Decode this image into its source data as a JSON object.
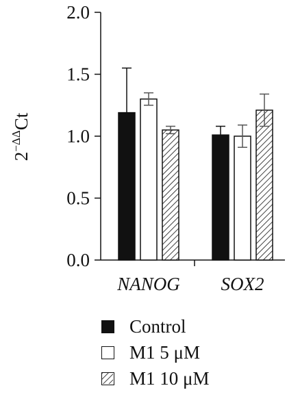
{
  "chart_data": {
    "type": "bar",
    "ylabel": "2⁻ΔΔCt",
    "ylim": [
      0,
      2.0
    ],
    "yticks": [
      "0.0",
      "0.5",
      "1.0",
      "1.5",
      "2.0"
    ],
    "categories": [
      "NANOG",
      "SOX2"
    ],
    "series": [
      {
        "name": "Control",
        "values": [
          1.19,
          1.01
        ],
        "errors": [
          0.36,
          0.07
        ],
        "fill": "#111111"
      },
      {
        "name": "M1 5 μM",
        "values": [
          1.3,
          1.0
        ],
        "errors": [
          0.05,
          0.09
        ],
        "fill": "#ffffff"
      },
      {
        "name": "M1 10 μM",
        "values": [
          1.05,
          1.21
        ],
        "errors": [
          0.03,
          0.13
        ],
        "fill": "hatched"
      }
    ],
    "grid": false,
    "legend_position": "bottom"
  },
  "legend": [
    {
      "label": "Control"
    },
    {
      "label": "M1 5 μM"
    },
    {
      "label": "M1 10 μM"
    }
  ]
}
